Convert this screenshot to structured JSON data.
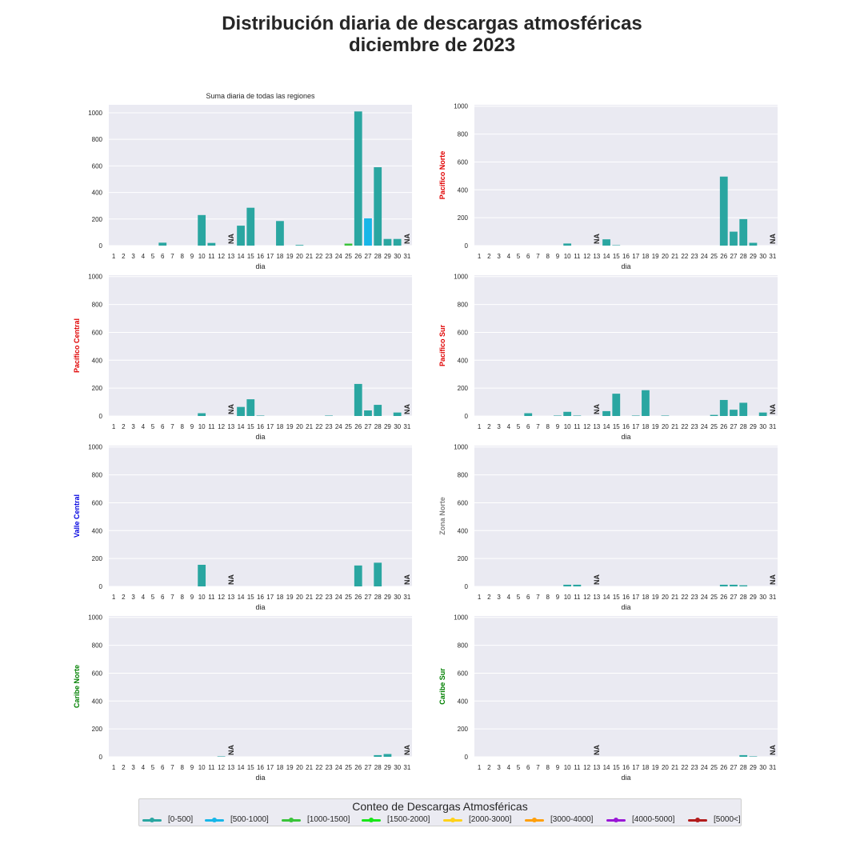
{
  "title": {
    "line1": "Distribución diaria de descargas atmosféricas",
    "line2": "diciembre de 2023"
  },
  "legend": {
    "title": "Conteo de Descargas Atmosféricas",
    "items": [
      {
        "label": "[0-500]",
        "color": "#2aa6a1"
      },
      {
        "label": "[500-1000]",
        "color": "#17b6e8"
      },
      {
        "label": "[1000-1500]",
        "color": "#3ac43a"
      },
      {
        "label": "[1500-2000]",
        "color": "#19e619"
      },
      {
        "label": "[2000-3000]",
        "color": "#ffd21a"
      },
      {
        "label": "[3000-4000]",
        "color": "#ff9f0a"
      },
      {
        "label": "[4000-5000]",
        "color": "#9a17d6"
      },
      {
        "label": "[5000<]",
        "color": "#b31c1c"
      }
    ]
  },
  "chart_data": [
    {
      "type": "bar",
      "title": "Suma diaria de todas las regiones",
      "ylabel": "",
      "ylabel_color": "#262626",
      "xlabel": "dia",
      "ylim": [
        0,
        1060
      ],
      "yticks": [
        0,
        200,
        400,
        600,
        800,
        1000
      ],
      "grid": true,
      "categories": [
        "1",
        "2",
        "3",
        "4",
        "5",
        "6",
        "7",
        "8",
        "9",
        "10",
        "11",
        "12",
        "13",
        "14",
        "15",
        "16",
        "17",
        "18",
        "19",
        "20",
        "21",
        "22",
        "23",
        "24",
        "25",
        "26",
        "27",
        "28",
        "29",
        "30",
        "31"
      ],
      "values": [
        0,
        0,
        0,
        0,
        0,
        22,
        0,
        0,
        0,
        230,
        20,
        0,
        null,
        150,
        285,
        0,
        0,
        185,
        0,
        5,
        0,
        0,
        0,
        0,
        15,
        1010,
        205,
        590,
        50,
        50,
        null
      ],
      "bar_colors": {
        "26": "#2aa6a1",
        "27": "#17b6e8",
        "25": "#3ac43a"
      },
      "na_days": [
        "13",
        "31"
      ],
      "na_label": "NA"
    },
    {
      "type": "bar",
      "title": "",
      "ylabel": "Pacífico Norte",
      "ylabel_color": "#e00000",
      "xlabel": "dia",
      "ylim": [
        0,
        1010
      ],
      "yticks": [
        0,
        200,
        400,
        600,
        800,
        1000
      ],
      "grid": true,
      "categories": [
        "1",
        "2",
        "3",
        "4",
        "5",
        "6",
        "7",
        "8",
        "9",
        "10",
        "11",
        "12",
        "13",
        "14",
        "15",
        "16",
        "17",
        "18",
        "19",
        "20",
        "21",
        "22",
        "23",
        "24",
        "25",
        "26",
        "27",
        "28",
        "29",
        "30",
        "31"
      ],
      "values": [
        0,
        0,
        0,
        0,
        0,
        0,
        0,
        0,
        0,
        15,
        0,
        0,
        null,
        45,
        3,
        0,
        0,
        0,
        0,
        0,
        0,
        0,
        0,
        0,
        0,
        495,
        100,
        190,
        20,
        0,
        null
      ],
      "na_days": [
        "13",
        "31"
      ],
      "na_label": "NA"
    },
    {
      "type": "bar",
      "title": "",
      "ylabel": "Pacífico Central",
      "ylabel_color": "#e00000",
      "xlabel": "dia",
      "ylim": [
        0,
        1010
      ],
      "yticks": [
        0,
        200,
        400,
        600,
        800,
        1000
      ],
      "grid": true,
      "categories": [
        "1",
        "2",
        "3",
        "4",
        "5",
        "6",
        "7",
        "8",
        "9",
        "10",
        "11",
        "12",
        "13",
        "14",
        "15",
        "16",
        "17",
        "18",
        "19",
        "20",
        "21",
        "22",
        "23",
        "24",
        "25",
        "26",
        "27",
        "28",
        "29",
        "30",
        "31"
      ],
      "values": [
        0,
        0,
        0,
        0,
        0,
        0,
        0,
        0,
        0,
        20,
        0,
        0,
        null,
        65,
        120,
        3,
        0,
        0,
        0,
        0,
        0,
        0,
        3,
        0,
        0,
        230,
        40,
        80,
        0,
        25,
        null
      ],
      "na_days": [
        "13",
        "31"
      ],
      "na_label": "NA"
    },
    {
      "type": "bar",
      "title": "",
      "ylabel": "Pacífico Sur",
      "ylabel_color": "#e00000",
      "xlabel": "dia",
      "ylim": [
        0,
        1010
      ],
      "yticks": [
        0,
        200,
        400,
        600,
        800,
        1000
      ],
      "grid": true,
      "categories": [
        "1",
        "2",
        "3",
        "4",
        "5",
        "6",
        "7",
        "8",
        "9",
        "10",
        "11",
        "12",
        "13",
        "14",
        "15",
        "16",
        "17",
        "18",
        "19",
        "20",
        "21",
        "22",
        "23",
        "24",
        "25",
        "26",
        "27",
        "28",
        "29",
        "30",
        "31"
      ],
      "values": [
        0,
        0,
        0,
        0,
        0,
        20,
        0,
        0,
        3,
        30,
        3,
        0,
        null,
        35,
        160,
        0,
        3,
        185,
        0,
        3,
        0,
        0,
        0,
        0,
        8,
        115,
        45,
        95,
        0,
        25,
        null
      ],
      "na_days": [
        "13",
        "31"
      ],
      "na_label": "NA"
    },
    {
      "type": "bar",
      "title": "",
      "ylabel": "Valle Central",
      "ylabel_color": "#0000e0",
      "xlabel": "dia",
      "ylim": [
        0,
        1010
      ],
      "yticks": [
        0,
        200,
        400,
        600,
        800,
        1000
      ],
      "grid": true,
      "categories": [
        "1",
        "2",
        "3",
        "4",
        "5",
        "6",
        "7",
        "8",
        "9",
        "10",
        "11",
        "12",
        "13",
        "14",
        "15",
        "16",
        "17",
        "18",
        "19",
        "20",
        "21",
        "22",
        "23",
        "24",
        "25",
        "26",
        "27",
        "28",
        "29",
        "30",
        "31"
      ],
      "values": [
        0,
        0,
        0,
        0,
        0,
        0,
        0,
        0,
        0,
        155,
        0,
        0,
        null,
        0,
        0,
        0,
        0,
        0,
        0,
        0,
        0,
        0,
        0,
        0,
        0,
        150,
        0,
        170,
        0,
        0,
        null
      ],
      "na_days": [
        "13",
        "31"
      ],
      "na_label": "NA"
    },
    {
      "type": "bar",
      "title": "",
      "ylabel": "Zona Norte",
      "ylabel_color": "#808080",
      "xlabel": "dia",
      "ylim": [
        0,
        1010
      ],
      "yticks": [
        0,
        200,
        400,
        600,
        800,
        1000
      ],
      "grid": true,
      "categories": [
        "1",
        "2",
        "3",
        "4",
        "5",
        "6",
        "7",
        "8",
        "9",
        "10",
        "11",
        "12",
        "13",
        "14",
        "15",
        "16",
        "17",
        "18",
        "19",
        "20",
        "21",
        "22",
        "23",
        "24",
        "25",
        "26",
        "27",
        "28",
        "29",
        "30",
        "31"
      ],
      "values": [
        0,
        0,
        0,
        0,
        0,
        0,
        0,
        0,
        0,
        12,
        12,
        0,
        null,
        0,
        0,
        0,
        0,
        0,
        0,
        0,
        0,
        0,
        0,
        0,
        0,
        12,
        12,
        8,
        0,
        0,
        null
      ],
      "na_days": [
        "13",
        "31"
      ],
      "na_label": "NA"
    },
    {
      "type": "bar",
      "title": "",
      "ylabel": "Caribe Norte",
      "ylabel_color": "#008000",
      "xlabel": "dia",
      "ylim": [
        0,
        1010
      ],
      "yticks": [
        0,
        200,
        400,
        600,
        800,
        1000
      ],
      "grid": true,
      "categories": [
        "1",
        "2",
        "3",
        "4",
        "5",
        "6",
        "7",
        "8",
        "9",
        "10",
        "11",
        "12",
        "13",
        "14",
        "15",
        "16",
        "17",
        "18",
        "19",
        "20",
        "21",
        "22",
        "23",
        "24",
        "25",
        "26",
        "27",
        "28",
        "29",
        "30",
        "31"
      ],
      "values": [
        0,
        0,
        0,
        0,
        0,
        0,
        0,
        0,
        0,
        0,
        0,
        3,
        null,
        0,
        0,
        0,
        0,
        0,
        0,
        0,
        0,
        0,
        0,
        0,
        0,
        0,
        0,
        12,
        20,
        0,
        null
      ],
      "na_days": [
        "13",
        "31"
      ],
      "na_label": "NA"
    },
    {
      "type": "bar",
      "title": "",
      "ylabel": "Caribe Sur",
      "ylabel_color": "#008000",
      "xlabel": "dia",
      "ylim": [
        0,
        1010
      ],
      "yticks": [
        0,
        200,
        400,
        600,
        800,
        1000
      ],
      "grid": true,
      "categories": [
        "1",
        "2",
        "3",
        "4",
        "5",
        "6",
        "7",
        "8",
        "9",
        "10",
        "11",
        "12",
        "13",
        "14",
        "15",
        "16",
        "17",
        "18",
        "19",
        "20",
        "21",
        "22",
        "23",
        "24",
        "25",
        "26",
        "27",
        "28",
        "29",
        "30",
        "31"
      ],
      "values": [
        0,
        0,
        0,
        0,
        0,
        0,
        0,
        0,
        0,
        0,
        0,
        0,
        null,
        0,
        0,
        0,
        0,
        0,
        0,
        0,
        0,
        0,
        0,
        0,
        0,
        0,
        0,
        12,
        3,
        0,
        null
      ],
      "na_days": [
        "13",
        "31"
      ],
      "na_label": "NA"
    }
  ]
}
